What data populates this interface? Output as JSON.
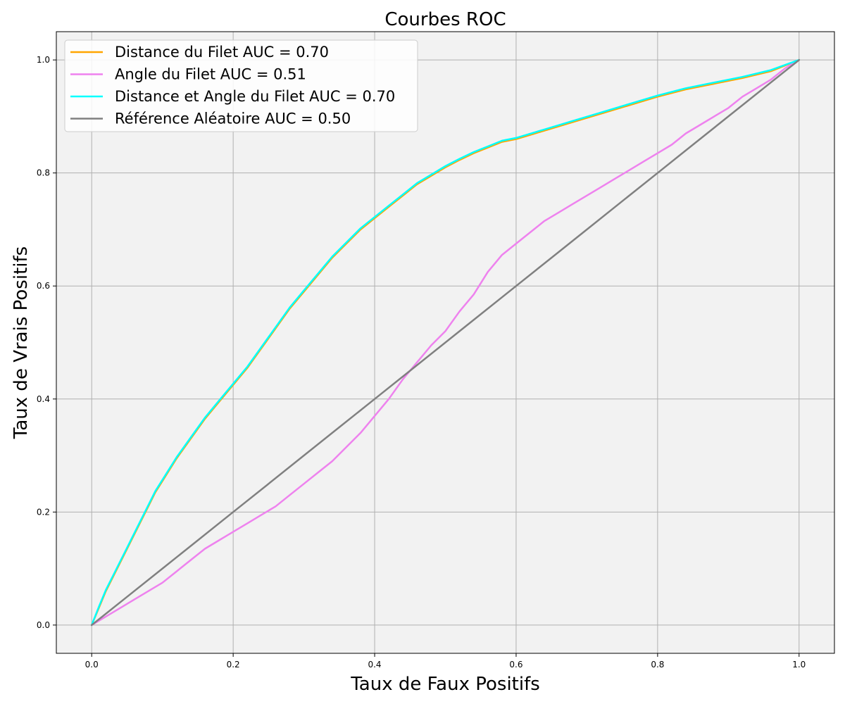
{
  "chart_data": {
    "type": "line",
    "title": "Courbes ROC",
    "xlabel": "Taux de Faux Positifs",
    "ylabel": "Taux de Vrais Positifs",
    "xlim": [
      -0.05,
      1.05
    ],
    "ylim": [
      -0.05,
      1.05
    ],
    "xticks": [
      0.0,
      0.2,
      0.4,
      0.6,
      0.8,
      1.0
    ],
    "yticks": [
      0.0,
      0.2,
      0.4,
      0.6,
      0.8,
      1.0
    ],
    "xtick_labels": [
      "0.0",
      "0.2",
      "0.4",
      "0.6",
      "0.8",
      "1.0"
    ],
    "ytick_labels": [
      "0.0",
      "0.2",
      "0.4",
      "0.6",
      "0.8",
      "1.0"
    ],
    "grid": true,
    "legend_position": "top-left",
    "background_color": "#f2f2f2",
    "series": [
      {
        "name": "Distance du Filet AUC = 0.70",
        "color": "#ffa500",
        "x": [
          0.0,
          0.01,
          0.02,
          0.03,
          0.04,
          0.05,
          0.06,
          0.07,
          0.08,
          0.09,
          0.1,
          0.12,
          0.14,
          0.16,
          0.18,
          0.2,
          0.22,
          0.24,
          0.26,
          0.28,
          0.3,
          0.32,
          0.34,
          0.36,
          0.38,
          0.4,
          0.42,
          0.44,
          0.46,
          0.48,
          0.5,
          0.52,
          0.54,
          0.56,
          0.58,
          0.6,
          0.64,
          0.68,
          0.72,
          0.76,
          0.8,
          0.84,
          0.88,
          0.92,
          0.96,
          1.0
        ],
        "y": [
          0.0,
          0.03,
          0.06,
          0.085,
          0.11,
          0.135,
          0.16,
          0.185,
          0.21,
          0.235,
          0.255,
          0.295,
          0.33,
          0.365,
          0.395,
          0.425,
          0.455,
          0.49,
          0.525,
          0.56,
          0.59,
          0.62,
          0.65,
          0.675,
          0.7,
          0.72,
          0.74,
          0.76,
          0.78,
          0.795,
          0.81,
          0.823,
          0.835,
          0.845,
          0.855,
          0.86,
          0.875,
          0.89,
          0.905,
          0.92,
          0.935,
          0.948,
          0.958,
          0.968,
          0.98,
          1.0
        ]
      },
      {
        "name": "Angle du Filet AUC = 0.51",
        "color": "#ee82ee",
        "x": [
          0.0,
          0.02,
          0.04,
          0.06,
          0.08,
          0.1,
          0.12,
          0.14,
          0.16,
          0.18,
          0.2,
          0.22,
          0.24,
          0.26,
          0.28,
          0.3,
          0.32,
          0.34,
          0.36,
          0.38,
          0.4,
          0.42,
          0.44,
          0.46,
          0.48,
          0.5,
          0.52,
          0.54,
          0.56,
          0.58,
          0.6,
          0.62,
          0.64,
          0.66,
          0.68,
          0.7,
          0.72,
          0.74,
          0.76,
          0.78,
          0.8,
          0.82,
          0.84,
          0.86,
          0.88,
          0.9,
          0.92,
          0.94,
          0.96,
          0.98,
          1.0
        ],
        "y": [
          0.0,
          0.015,
          0.03,
          0.045,
          0.06,
          0.075,
          0.095,
          0.115,
          0.135,
          0.15,
          0.165,
          0.18,
          0.195,
          0.21,
          0.23,
          0.25,
          0.27,
          0.29,
          0.315,
          0.34,
          0.37,
          0.4,
          0.435,
          0.465,
          0.495,
          0.52,
          0.555,
          0.585,
          0.625,
          0.655,
          0.675,
          0.695,
          0.715,
          0.73,
          0.745,
          0.76,
          0.775,
          0.79,
          0.805,
          0.82,
          0.835,
          0.85,
          0.87,
          0.885,
          0.9,
          0.915,
          0.935,
          0.95,
          0.965,
          0.985,
          1.0
        ]
      },
      {
        "name": "Distance et Angle du Filet AUC = 0.70",
        "color": "#00ffff",
        "x": [
          0.0,
          0.01,
          0.02,
          0.03,
          0.04,
          0.05,
          0.06,
          0.07,
          0.08,
          0.09,
          0.1,
          0.12,
          0.14,
          0.16,
          0.18,
          0.2,
          0.22,
          0.24,
          0.26,
          0.28,
          0.3,
          0.32,
          0.34,
          0.36,
          0.38,
          0.4,
          0.42,
          0.44,
          0.46,
          0.48,
          0.5,
          0.52,
          0.54,
          0.56,
          0.58,
          0.6,
          0.64,
          0.68,
          0.72,
          0.76,
          0.8,
          0.84,
          0.88,
          0.92,
          0.96,
          1.0
        ],
        "y": [
          0.0,
          0.032,
          0.062,
          0.087,
          0.112,
          0.137,
          0.162,
          0.187,
          0.212,
          0.237,
          0.257,
          0.297,
          0.332,
          0.367,
          0.397,
          0.427,
          0.457,
          0.492,
          0.527,
          0.562,
          0.592,
          0.622,
          0.652,
          0.677,
          0.702,
          0.722,
          0.742,
          0.762,
          0.782,
          0.797,
          0.812,
          0.825,
          0.837,
          0.847,
          0.857,
          0.862,
          0.877,
          0.892,
          0.907,
          0.922,
          0.937,
          0.95,
          0.96,
          0.97,
          0.982,
          1.0
        ]
      },
      {
        "name": "Référence Aléatoire AUC = 0.50",
        "color": "#808080",
        "x": [
          0.0,
          0.05,
          0.1,
          0.15,
          0.2,
          0.25,
          0.3,
          0.35,
          0.4,
          0.45,
          0.5,
          0.55,
          0.6,
          0.65,
          0.7,
          0.75,
          0.8,
          0.85,
          0.9,
          0.95,
          1.0
        ],
        "y": [
          0.0,
          0.05,
          0.1,
          0.15,
          0.2,
          0.25,
          0.3,
          0.35,
          0.4,
          0.45,
          0.5,
          0.55,
          0.6,
          0.65,
          0.7,
          0.75,
          0.8,
          0.85,
          0.9,
          0.95,
          1.0
        ]
      }
    ]
  }
}
